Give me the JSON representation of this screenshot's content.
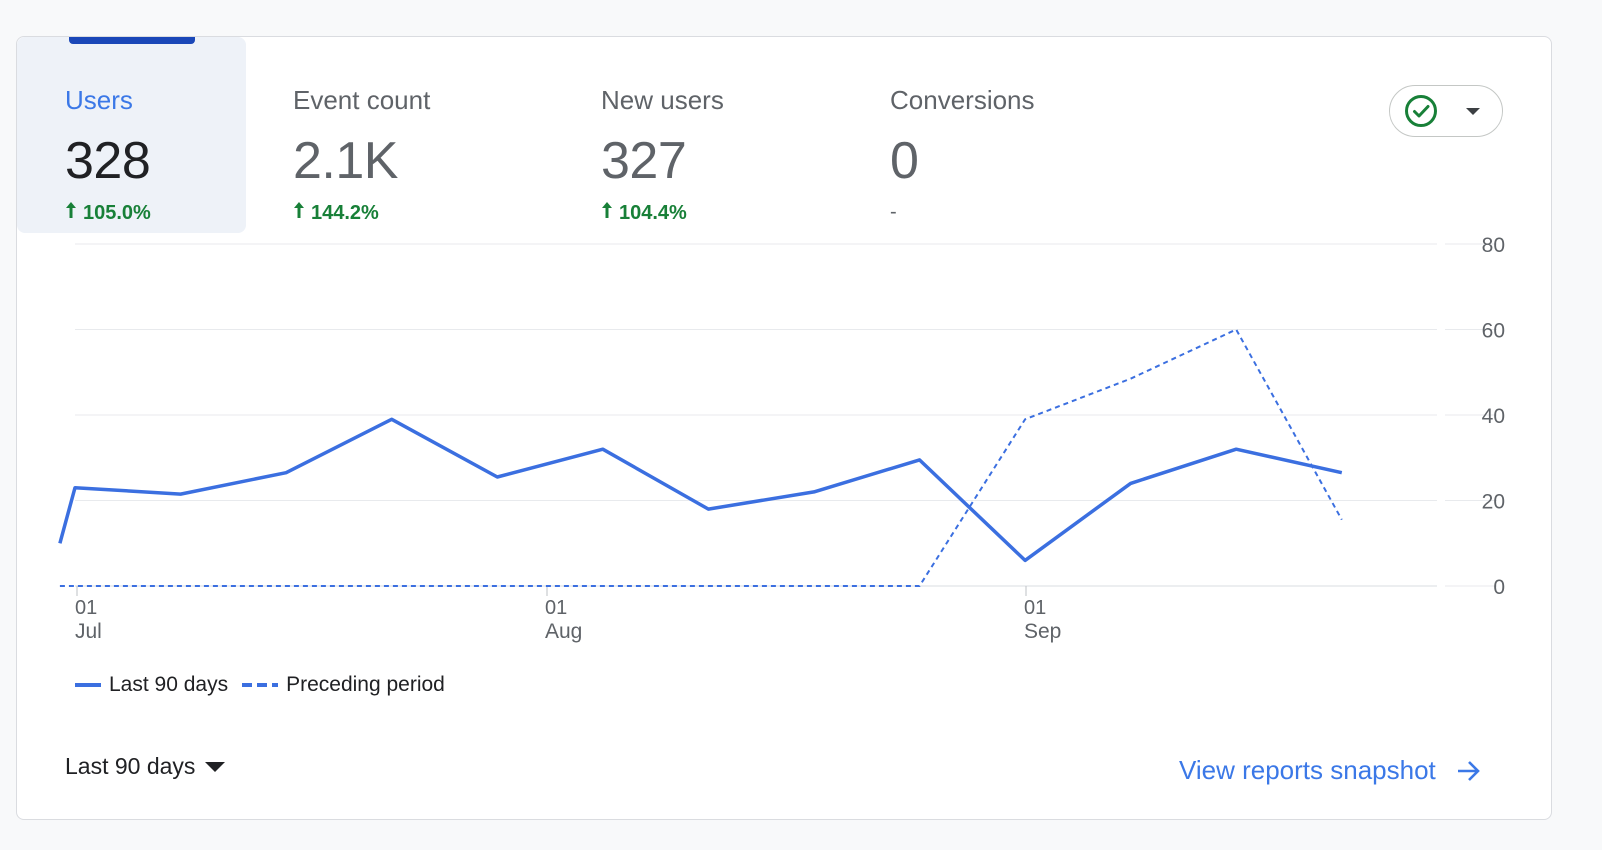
{
  "metrics": [
    {
      "label": "Users",
      "value": "328",
      "change": "105.0%",
      "selected": true
    },
    {
      "label": "Event count",
      "value": "2.1K",
      "change": "144.2%"
    },
    {
      "label": "New users",
      "value": "327",
      "change": "104.4%"
    },
    {
      "label": "Conversions",
      "value": "0",
      "change": "-"
    }
  ],
  "status_icon": "check-circle-icon",
  "colors": {
    "accent": "#3b78e7",
    "line": "#3b6fe0",
    "positive": "#188038",
    "selected_bg": "#eef2f8"
  },
  "footer": {
    "range_label": "Last 90 days",
    "link_label": "View reports snapshot"
  },
  "chart_data": {
    "type": "line",
    "x_ticks": [
      {
        "day": "01",
        "month": "Jul"
      },
      {
        "day": "01",
        "month": "Aug"
      },
      {
        "day": "01",
        "month": "Sep"
      }
    ],
    "y_ticks": [
      "80",
      "60",
      "40",
      "20",
      "0"
    ],
    "ylim": [
      0,
      80
    ],
    "grid": true,
    "legend_position": "bottom-left",
    "series": [
      {
        "name": "Last 90 days",
        "style": "solid",
        "x": [
          "Jun 30",
          "Jul 1",
          "Jul 8",
          "Jul 15",
          "Jul 22",
          "Jul 29",
          "Aug 5",
          "Aug 12",
          "Aug 19",
          "Aug 26",
          "Sep 2",
          "Sep 9",
          "Sep 16",
          "Sep 23"
        ],
        "values": [
          10,
          23,
          21.5,
          26.5,
          39,
          25.5,
          32,
          18,
          22,
          29.5,
          6,
          24,
          32,
          26.5
        ]
      },
      {
        "name": "Preceding period",
        "style": "dashed",
        "x": [
          "Jun 30",
          "Jul 1",
          "Jul 8",
          "Jul 15",
          "Jul 22",
          "Jul 29",
          "Aug 5",
          "Aug 12",
          "Aug 19",
          "Aug 26",
          "Sep 2",
          "Sep 9",
          "Sep 16",
          "Sep 23"
        ],
        "values": [
          0,
          0,
          0,
          0,
          0,
          0,
          0,
          0,
          0,
          0,
          39,
          48.5,
          60,
          15.5
        ]
      }
    ]
  }
}
